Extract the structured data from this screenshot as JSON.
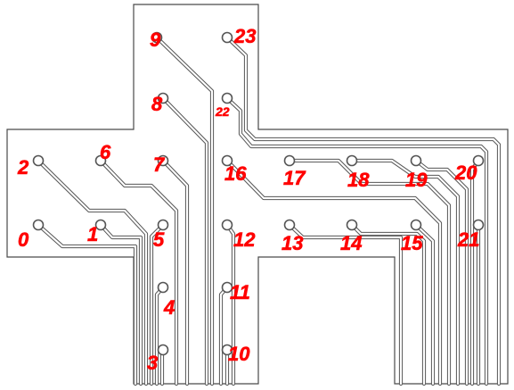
{
  "diagram": {
    "pad_labels": [
      "9",
      "23",
      "8",
      "22",
      "6",
      "2",
      "7",
      "16",
      "17",
      "18",
      "19",
      "20",
      "0",
      "1",
      "5",
      "12",
      "13",
      "14",
      "15",
      "21",
      "4",
      "11",
      "3",
      "10"
    ]
  }
}
